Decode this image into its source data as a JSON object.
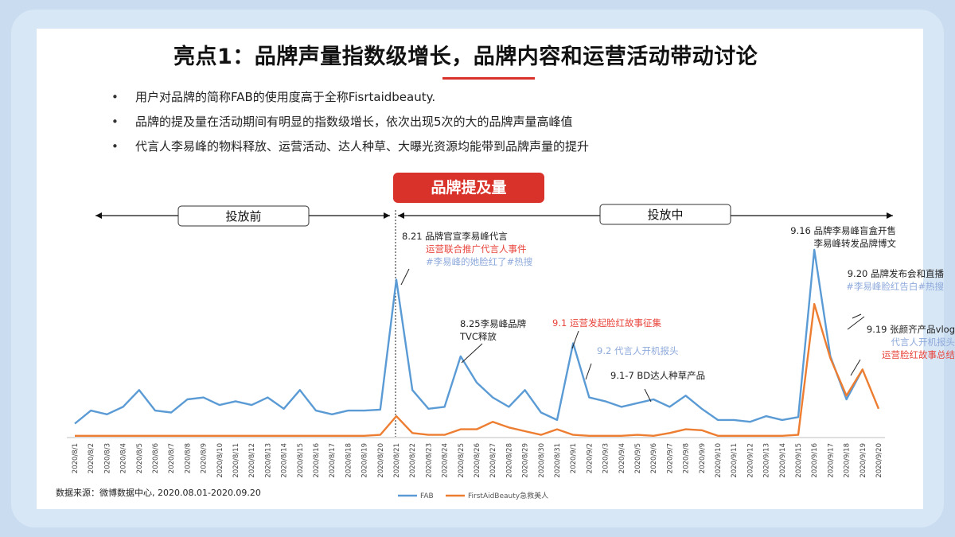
{
  "title": "亮点1：品牌声量指数级增长，品牌内容和运营活动带动讨论",
  "bullets": [
    "用户对品牌的简称FAB的使用度高于全称Fisrtaidbeauty.",
    "品牌的提及量在活动期间有明显的指数级增长，依次出现5次的大的品牌声量高峰值",
    "代言人李易峰的物料释放、运营活动、达人种草、大曝光资源均能带到品牌声量的提升"
  ],
  "chart_header": "品牌提及量",
  "period_labels": {
    "before": "投放前",
    "during": "投放中"
  },
  "source_note": "数据来源：微博数据中心, 2020.08.01-2020.09.20",
  "colors": {
    "fab": "#5b9bd5",
    "full": "#ed7d31",
    "accent": "#d9322a",
    "annot_red": "#e8453c",
    "annot_blue": "#8eaadb"
  },
  "annotations": [
    {
      "id": "a1",
      "lines": [
        {
          "text": "8.21 品牌官宣李易峰代言",
          "color": "#222222"
        },
        {
          "text": "运营联合推广代言人事件",
          "color": "#e8453c"
        },
        {
          "text": "#李易峰的她脸红了#热搜",
          "color": "#8eaadb"
        }
      ]
    },
    {
      "id": "a2",
      "lines": [
        {
          "text": "8.25李易峰品牌",
          "color": "#222222"
        },
        {
          "text": "TVC释放",
          "color": "#222222"
        }
      ]
    },
    {
      "id": "a3",
      "lines": [
        {
          "text": "9.1 运营发起脸红故事征集",
          "color": "#e8453c"
        }
      ]
    },
    {
      "id": "a4",
      "lines": [
        {
          "text": "9.2 代言人开机报头",
          "color": "#8eaadb"
        }
      ]
    },
    {
      "id": "a5",
      "lines": [
        {
          "text": "9.1-7 BD达人种草产品",
          "color": "#222222"
        }
      ]
    },
    {
      "id": "a6",
      "lines": [
        {
          "text": "9.16 品牌李易峰盲盒开售",
          "color": "#222222"
        },
        {
          "text": "李易峰转发品牌博文",
          "color": "#222222"
        }
      ]
    },
    {
      "id": "a7",
      "lines": [
        {
          "text": "9.20 品牌发布会和直播",
          "color": "#222222"
        },
        {
          "text": "#李易峰脸红告白#热搜",
          "color": "#8eaadb"
        }
      ]
    },
    {
      "id": "a8",
      "lines": [
        {
          "text": "9.19 张颜齐产品vlog",
          "color": "#222222"
        },
        {
          "text": "代言人开机报头",
          "color": "#8eaadb"
        },
        {
          "text": "运营脸红故事总结",
          "color": "#e8453c"
        }
      ]
    }
  ],
  "chart_data": {
    "type": "line",
    "categories": [
      "2020/8/1",
      "2020/8/2",
      "2020/8/3",
      "2020/8/4",
      "2020/8/5",
      "2020/8/6",
      "2020/8/7",
      "2020/8/8",
      "2020/8/9",
      "2020/8/10",
      "2020/8/11",
      "2020/8/12",
      "2020/8/13",
      "2020/8/14",
      "2020/8/15",
      "2020/8/16",
      "2020/8/17",
      "2020/8/18",
      "2020/8/19",
      "2020/8/20",
      "2020/8/21",
      "2020/8/22",
      "2020/8/23",
      "2020/8/24",
      "2020/8/25",
      "2020/8/26",
      "2020/8/27",
      "2020/8/28",
      "2020/8/29",
      "2020/8/30",
      "2020/8/31",
      "2020/9/1",
      "2020/9/2",
      "2020/9/3",
      "2020/9/4",
      "2020/9/5",
      "2020/9/6",
      "2020/9/7",
      "2020/9/8",
      "2020/9/9",
      "2020/9/10",
      "2020/9/11",
      "2020/9/12",
      "2020/9/13",
      "2020/9/14",
      "2020/9/15",
      "2020/9/16",
      "2020/9/17",
      "2020/9/18",
      "2020/9/19",
      "2020/9/20"
    ],
    "series": [
      {
        "name": "FAB",
        "color": "#5b9bd5",
        "values": [
          7,
          14,
          12,
          16,
          25,
          14,
          13,
          20,
          21,
          17,
          19,
          17,
          21,
          15,
          25,
          14,
          12,
          14,
          14,
          14.5,
          84,
          25,
          15,
          16,
          43,
          29,
          21,
          16,
          25,
          13,
          9,
          50,
          21,
          19,
          16,
          18,
          20,
          16,
          22,
          15,
          9,
          9,
          8,
          11,
          9,
          10.5,
          100,
          43,
          20,
          36,
          null
        ]
      },
      {
        "name": "FirstAidBeauty急救美人",
        "color": "#ed7d31",
        "values": [
          0.5,
          0.5,
          0.5,
          0.5,
          0.5,
          0.5,
          0.5,
          0.5,
          0.5,
          0.5,
          0.5,
          0.5,
          0.5,
          0.5,
          0.5,
          0.5,
          0.5,
          0.5,
          0.5,
          1,
          11,
          2,
          1,
          1,
          4,
          4,
          8,
          5,
          3,
          1,
          4,
          1,
          0.5,
          0.5,
          0.5,
          1,
          0.5,
          2,
          4,
          3.5,
          0.5,
          0.5,
          0.5,
          0.5,
          0.5,
          1,
          71,
          42,
          22,
          36,
          15
        ]
      }
    ],
    "ylim": [
      0,
      100
    ],
    "grid": false,
    "legend": "bottom-center",
    "phase_divider_category": "2020/8/21"
  }
}
